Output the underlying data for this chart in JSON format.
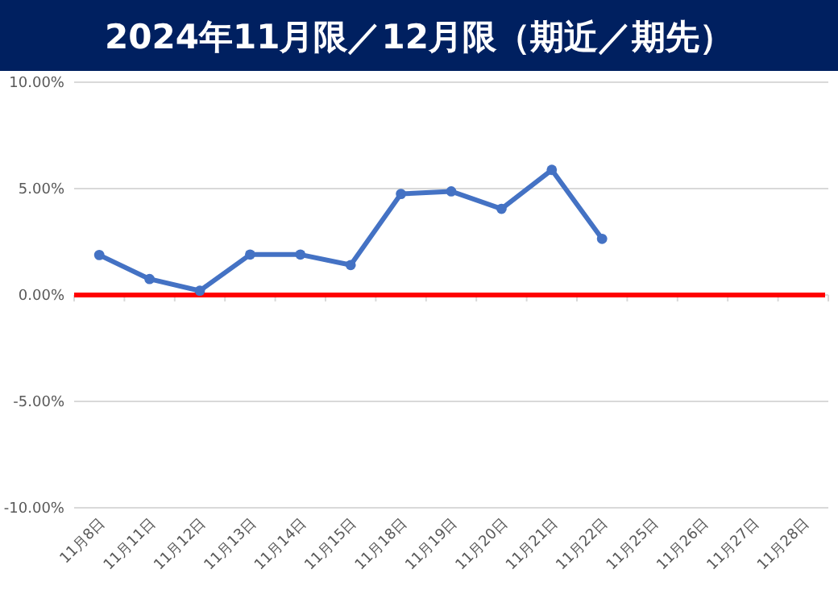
{
  "chart_data": {
    "type": "line",
    "title": "2024年11月限／12月限（期近／期先）",
    "categories": [
      "11月8日",
      "11月11日",
      "11月12日",
      "11月13日",
      "11月14日",
      "11月15日",
      "11月18日",
      "11月19日",
      "11月20日",
      "11月21日",
      "11月22日",
      "11月25日",
      "11月26日",
      "11月27日",
      "11月28日"
    ],
    "series": [
      {
        "color": "#4472c4",
        "values": [
          1.88,
          0.75,
          0.2,
          1.9,
          1.9,
          1.41,
          4.75,
          4.87,
          4.05,
          5.88,
          2.64,
          null,
          null,
          null,
          null
        ]
      }
    ],
    "ylim": [
      -10,
      10
    ],
    "yticks": [
      {
        "value": -10,
        "label": "-10.00%"
      },
      {
        "value": -5,
        "label": "-5.00%"
      },
      {
        "value": 0,
        "label": "0.00%"
      },
      {
        "value": 5,
        "label": "5.00%"
      },
      {
        "value": 10,
        "label": "10.00%"
      }
    ],
    "ref_lines": [
      {
        "axis": "y",
        "value": 0,
        "color": "#ff0000"
      }
    ],
    "grid": "y",
    "marker": "circle",
    "line_style": "solid"
  }
}
